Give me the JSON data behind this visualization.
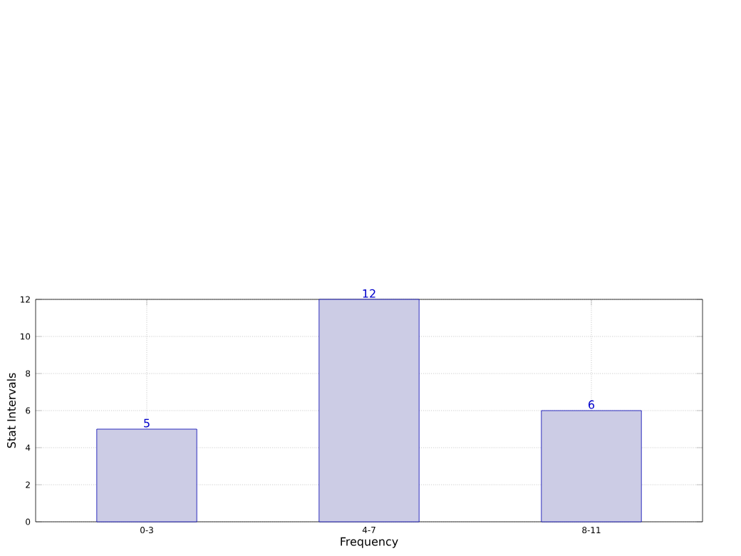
{
  "chart_data": {
    "type": "bar",
    "xlabel": "Frequency",
    "ylabel": "Stat Intervals",
    "categories": [
      "0-3",
      "4-7",
      "8-11"
    ],
    "values": [
      5,
      12,
      6
    ],
    "color": "#ccccE5",
    "ylim": [
      0,
      12
    ],
    "yticks": [
      0,
      2,
      4,
      6,
      8,
      10,
      12
    ],
    "grid": true,
    "data_labels": true
  }
}
